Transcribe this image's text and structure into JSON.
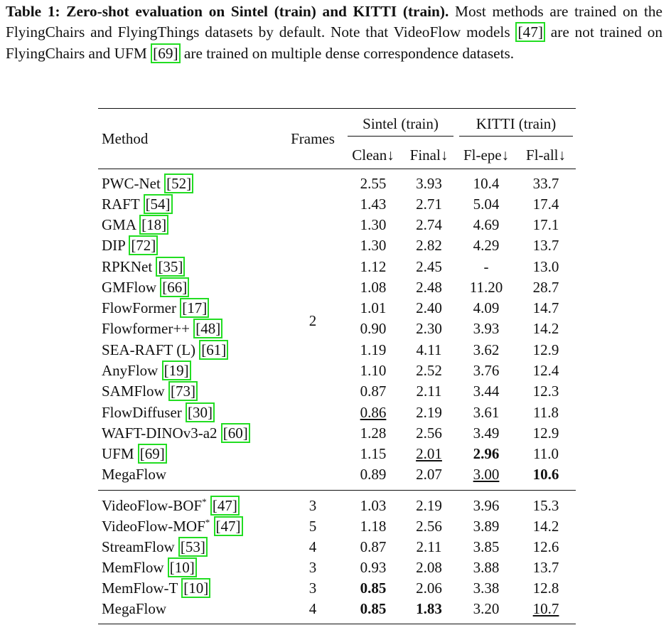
{
  "caption": {
    "label": "Table 1: Zero-shot evaluation on Sintel (train) and KITTI (train).",
    "parts": [
      " Most methods are trained on the FlyingChairs and FlyingThings datasets by default. Note that VideoFlow models ",
      "[47]",
      " are not trained on FlyingChairs and UFM ",
      "[69]",
      " are trained on multiple dense correspondence datasets."
    ]
  },
  "table": {
    "header": {
      "method": "Method",
      "frames": "Frames",
      "groups": [
        "Sintel (train)",
        "KITTI (train)"
      ],
      "columns": [
        "Clean↓",
        "Final↓",
        "Fl-epe↓",
        "Fl-all↓"
      ]
    },
    "group1": {
      "frames": "2",
      "rows": [
        {
          "method": "PWC-Net",
          "cite": "[52]",
          "values": [
            "2.55",
            "3.93",
            "10.4",
            "33.7"
          ]
        },
        {
          "method": "RAFT",
          "cite": "[54]",
          "values": [
            "1.43",
            "2.71",
            "5.04",
            "17.4"
          ]
        },
        {
          "method": "GMA",
          "cite": "[18]",
          "values": [
            "1.30",
            "2.74",
            "4.69",
            "17.1"
          ]
        },
        {
          "method": "DIP",
          "cite": "[72]",
          "values": [
            "1.30",
            "2.82",
            "4.29",
            "13.7"
          ]
        },
        {
          "method": "RPKNet",
          "cite": "[35]",
          "values": [
            "1.12",
            "2.45",
            "-",
            "13.0"
          ]
        },
        {
          "method": "GMFlow",
          "cite": "[66]",
          "values": [
            "1.08",
            "2.48",
            "11.20",
            "28.7"
          ]
        },
        {
          "method": "FlowFormer",
          "cite": "[17]",
          "values": [
            "1.01",
            "2.40",
            "4.09",
            "14.7"
          ]
        },
        {
          "method": "Flowformer++",
          "cite": "[48]",
          "values": [
            "0.90",
            "2.30",
            "3.93",
            "14.2"
          ]
        },
        {
          "method": "SEA-RAFT (L)",
          "cite": "[61]",
          "values": [
            "1.19",
            "4.11",
            "3.62",
            "12.9"
          ]
        },
        {
          "method": "AnyFlow",
          "cite": "[19]",
          "values": [
            "1.10",
            "2.52",
            "3.76",
            "12.4"
          ]
        },
        {
          "method": "SAMFlow",
          "cite": "[73]",
          "values": [
            "0.87",
            "2.11",
            "3.44",
            "12.3"
          ]
        },
        {
          "method": "FlowDiffuser",
          "cite": "[30]",
          "values": [
            "0.86",
            "2.19",
            "3.61",
            "11.8"
          ],
          "underline": [
            0
          ]
        },
        {
          "method": "WAFT-DINOv3-a2",
          "cite": "[60]",
          "values": [
            "1.28",
            "2.56",
            "3.49",
            "12.9"
          ]
        },
        {
          "method": "UFM",
          "cite": "[69]",
          "values": [
            "1.15",
            "2.01",
            "2.96",
            "11.0"
          ],
          "underline": [
            1
          ],
          "bold": [
            2
          ]
        },
        {
          "method": "MegaFlow",
          "values": [
            "0.89",
            "2.07",
            "3.00",
            "10.6"
          ],
          "underline": [
            2
          ],
          "bold": [
            3
          ]
        }
      ]
    },
    "group2": {
      "rows": [
        {
          "method": "VideoFlow-BOF",
          "sup": "*",
          "cite": "[47]",
          "frames": "3",
          "values": [
            "1.03",
            "2.19",
            "3.96",
            "15.3"
          ]
        },
        {
          "method": "VideoFlow-MOF",
          "sup": "*",
          "cite": "[47]",
          "frames": "5",
          "values": [
            "1.18",
            "2.56",
            "3.89",
            "14.2"
          ]
        },
        {
          "method": "StreamFlow",
          "cite": "[53]",
          "frames": "4",
          "values": [
            "0.87",
            "2.11",
            "3.85",
            "12.6"
          ]
        },
        {
          "method": "MemFlow",
          "cite": "[10]",
          "frames": "3",
          "values": [
            "0.93",
            "2.08",
            "3.88",
            "13.7"
          ]
        },
        {
          "method": "MemFlow-T",
          "cite": "[10]",
          "frames": "3",
          "values": [
            "0.85",
            "2.06",
            "3.38",
            "12.8"
          ],
          "bold": [
            0
          ]
        },
        {
          "method": "MegaFlow",
          "frames": "4",
          "values": [
            "0.85",
            "1.83",
            "3.20",
            "10.7"
          ],
          "bold": [
            0,
            1
          ],
          "underline": [
            3
          ]
        }
      ]
    }
  }
}
